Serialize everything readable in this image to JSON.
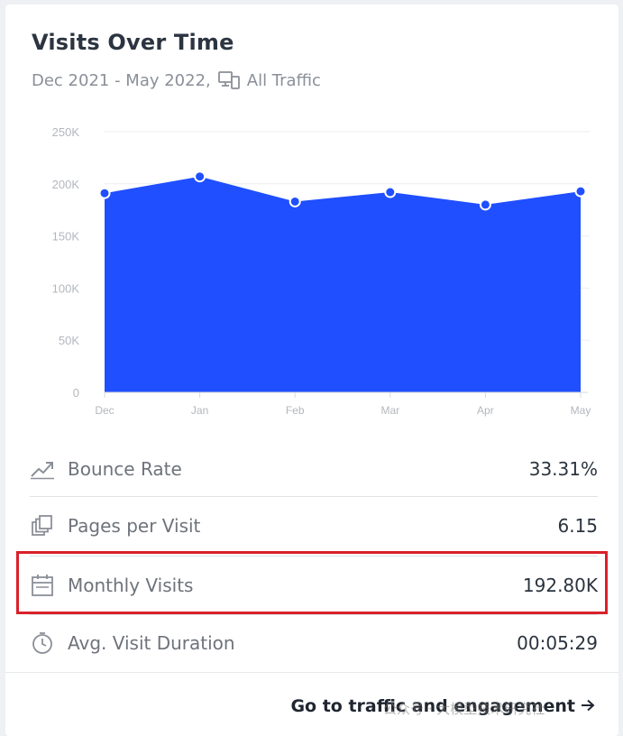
{
  "card": {
    "title": "Visits Over Time",
    "date_range": "Dec 2021 - May 2022,",
    "traffic_filter": "All Traffic"
  },
  "chart_data": {
    "type": "area",
    "title": "",
    "xlabel": "",
    "ylabel": "",
    "categories": [
      "Dec",
      "Jan",
      "Feb",
      "Mar",
      "Apr",
      "May"
    ],
    "series": [
      {
        "values": [
          191000,
          207000,
          183000,
          192000,
          180000,
          192800
        ],
        "color": "#1f4fff"
      }
    ],
    "ylim": [
      0,
      250000
    ],
    "yticks": [
      0,
      50000,
      100000,
      150000,
      200000,
      250000
    ],
    "ytick_labels": [
      "0",
      "50K",
      "100K",
      "150K",
      "200K",
      "250K"
    ],
    "grid": true,
    "legend": "none"
  },
  "metrics": [
    {
      "label": "Bounce Rate",
      "value": "33.31%",
      "icon": "trend-up-icon"
    },
    {
      "label": "Pages per Visit",
      "value": "6.15",
      "icon": "pages-stack-icon"
    },
    {
      "label": "Monthly Visits",
      "value": "192.80K",
      "icon": "calendar-icon",
      "highlighted": true
    },
    {
      "label": "Avg. Visit Duration",
      "value": "00:05:29",
      "icon": "stopwatch-icon"
    }
  ],
  "footer": {
    "link_label": "Go to traffic and engagement",
    "arrow_icon": "arrow-right-icon"
  },
  "watermark": "公众号 · 大模型技术研究社"
}
